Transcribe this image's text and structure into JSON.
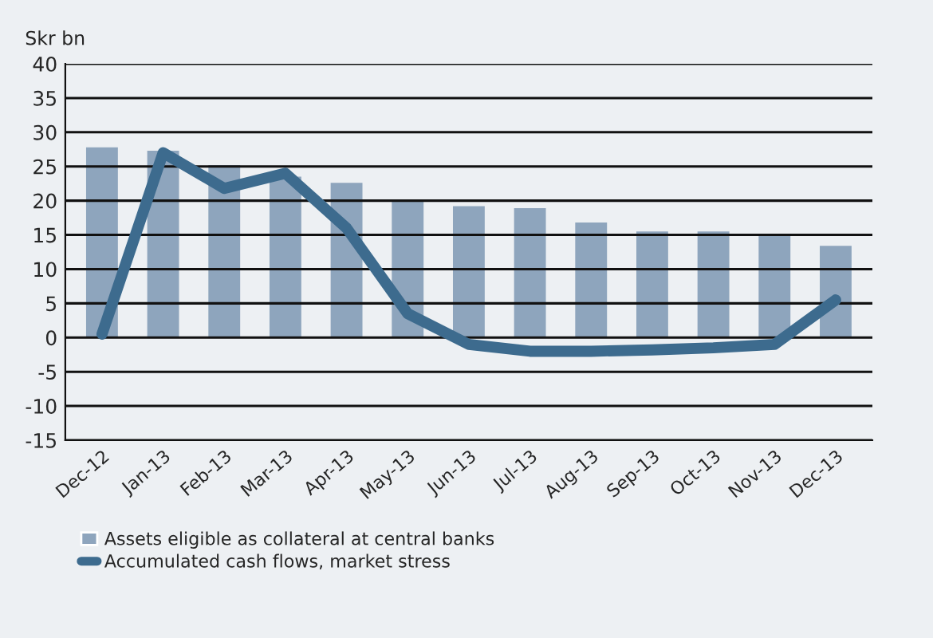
{
  "chart_data": {
    "type": "bar",
    "ylabel": "Skr bn",
    "categories": [
      "Dec-12",
      "Jan-13",
      "Feb-13",
      "Mar-13",
      "Apr-13",
      "May-13",
      "Jun-13",
      "Jul-13",
      "Aug-13",
      "Sep-13",
      "Oct-13",
      "Nov-13",
      "Dec-13"
    ],
    "series": [
      {
        "name": "Assets eligible as collateral at central banks",
        "color": "#8ea5bd",
        "values": [
          27.8,
          27.3,
          25.2,
          23.5,
          22.6,
          20.2,
          19.2,
          18.9,
          16.8,
          15.5,
          15.5,
          14.9,
          13.4
        ]
      },
      {
        "name": "Accumulated cash flows, market stress",
        "type": "line",
        "color": "#3d6b8e",
        "values": [
          0.5,
          27,
          21.8,
          24,
          16,
          3.5,
          -1,
          -2,
          -2,
          -1.8,
          -1.5,
          -1,
          5.5
        ]
      }
    ],
    "ylim": [
      -15,
      40
    ],
    "yticks": [
      -15,
      -10,
      -5,
      0,
      5,
      10,
      15,
      20,
      25,
      30,
      35,
      40
    ],
    "grid": "y",
    "legend": "bottom",
    "marker": "none",
    "line_style": "solid"
  }
}
